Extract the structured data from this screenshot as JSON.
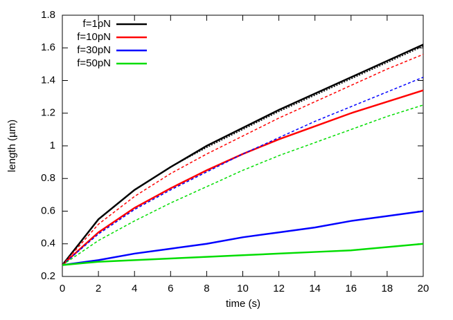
{
  "chart_data": {
    "type": "line",
    "xlabel": "time (s)",
    "ylabel": "length (µm)",
    "x": [
      0,
      2,
      4,
      6,
      8,
      10,
      12,
      14,
      16,
      18,
      20
    ],
    "xlim": [
      0,
      20
    ],
    "xticks": [
      0,
      2,
      4,
      6,
      8,
      10,
      12,
      14,
      16,
      18,
      20
    ],
    "ylim": [
      0.2,
      1.8
    ],
    "yticks": [
      0.2,
      0.4,
      0.6,
      0.8,
      1,
      1.2,
      1.4,
      1.6,
      1.8
    ],
    "legend": "top-left",
    "grid": false,
    "series": [
      {
        "name": "f=1pN",
        "color": "#000000",
        "values": [
          0.27,
          0.55,
          0.73,
          0.87,
          1.0,
          1.11,
          1.22,
          1.32,
          1.42,
          1.52,
          1.62
        ]
      },
      {
        "name": "f=10pN",
        "color": "#ff0000",
        "values": [
          0.27,
          0.47,
          0.62,
          0.74,
          0.85,
          0.95,
          1.04,
          1.12,
          1.2,
          1.27,
          1.34
        ]
      },
      {
        "name": "f=30pN",
        "color": "#0000ff",
        "values": [
          0.27,
          0.3,
          0.34,
          0.37,
          0.4,
          0.44,
          0.47,
          0.5,
          0.54,
          0.57,
          0.6
        ]
      },
      {
        "name": "f=50pN",
        "color": "#00dd00",
        "values": [
          0.27,
          0.29,
          0.3,
          0.31,
          0.32,
          0.33,
          0.34,
          0.35,
          0.36,
          0.38,
          0.4
        ]
      },
      {
        "color": "#000000",
        "style": "dotted",
        "values": [
          0.27,
          0.55,
          0.73,
          0.87,
          0.99,
          1.1,
          1.21,
          1.31,
          1.41,
          1.51,
          1.61
        ]
      },
      {
        "color": "#ff0000",
        "style": "dashed",
        "values": [
          0.27,
          0.52,
          0.69,
          0.83,
          0.95,
          1.06,
          1.17,
          1.27,
          1.37,
          1.47,
          1.56
        ]
      },
      {
        "color": "#0000ff",
        "style": "dashed",
        "values": [
          0.27,
          0.46,
          0.61,
          0.73,
          0.84,
          0.95,
          1.05,
          1.15,
          1.24,
          1.33,
          1.42
        ]
      },
      {
        "color": "#00dd00",
        "style": "dashed",
        "values": [
          0.27,
          0.42,
          0.54,
          0.65,
          0.75,
          0.85,
          0.94,
          1.02,
          1.1,
          1.18,
          1.25
        ]
      }
    ]
  }
}
